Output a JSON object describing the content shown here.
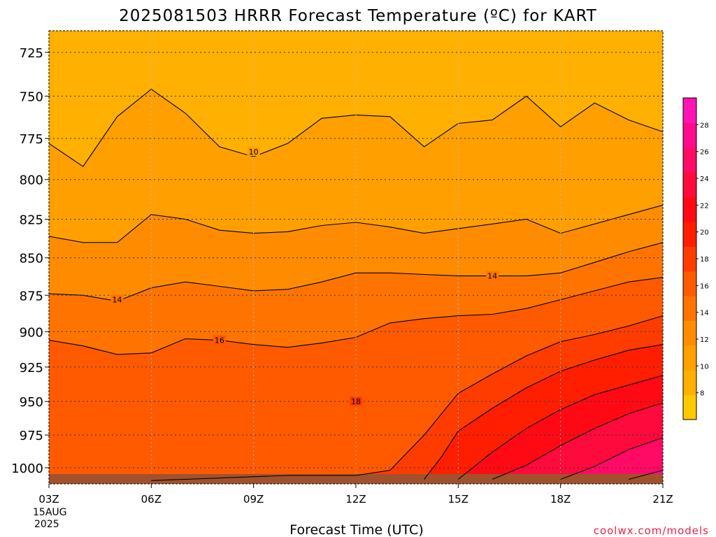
{
  "chart_data": {
    "type": "heatmap",
    "title": "2025081503 HRRR Forecast Temperature (ºC) for KART",
    "xlabel": "Forecast Time (UTC)",
    "ylabel": "",
    "x_ticks": [
      "03Z",
      "06Z",
      "09Z",
      "12Z",
      "15Z",
      "18Z",
      "21Z"
    ],
    "x_hours": [
      3,
      4,
      5,
      6,
      7,
      8,
      9,
      10,
      11,
      12,
      13,
      14,
      15,
      16,
      17,
      18,
      19,
      20,
      21
    ],
    "x_first_date": "15AUG",
    "x_first_year": "2025",
    "xlim": [
      3,
      21
    ],
    "y_ticks": [
      725,
      750,
      775,
      800,
      825,
      850,
      875,
      900,
      925,
      950,
      975,
      1000
    ],
    "ylim": [
      1006,
      713
    ],
    "y_scale": "log-pressure",
    "grid": true,
    "colorbar": {
      "ticks": [
        8,
        10,
        12,
        14,
        16,
        18,
        20,
        22,
        24,
        26,
        28
      ],
      "range": [
        6,
        30
      ],
      "colors": [
        "#ffc800",
        "#ffb000",
        "#ff9f00",
        "#ff8c00",
        "#ff7400",
        "#ff5a00",
        "#ff3c00",
        "#ff1e00",
        "#ff0a14",
        "#ff0a3c",
        "#ff0a64",
        "#ff0a8c",
        "#ff14b4"
      ],
      "placement": "right"
    },
    "contour_labels": [
      "10",
      "14",
      "14",
      "16",
      "18"
    ],
    "contours": [
      {
        "level": 10,
        "points": [
          [
            3,
            778
          ],
          [
            4,
            792
          ],
          [
            5,
            762
          ],
          [
            6,
            746
          ],
          [
            7,
            760
          ],
          [
            8,
            780
          ],
          [
            9,
            786
          ],
          [
            10,
            778
          ],
          [
            11,
            763
          ],
          [
            12,
            761
          ],
          [
            13,
            762
          ],
          [
            14,
            780
          ],
          [
            15,
            766
          ],
          [
            16,
            764
          ],
          [
            17,
            750
          ],
          [
            18,
            768
          ],
          [
            19,
            754
          ],
          [
            20,
            764
          ],
          [
            21,
            771
          ]
        ]
      },
      {
        "level": 12,
        "points": [
          [
            3,
            836
          ],
          [
            4,
            840
          ],
          [
            5,
            840
          ],
          [
            6,
            822
          ],
          [
            7,
            825
          ],
          [
            8,
            832
          ],
          [
            9,
            834
          ],
          [
            10,
            833
          ],
          [
            11,
            829
          ],
          [
            12,
            827
          ],
          [
            13,
            830
          ],
          [
            14,
            834
          ],
          [
            15,
            831
          ],
          [
            16,
            828
          ],
          [
            17,
            825
          ],
          [
            18,
            834
          ],
          [
            19,
            828
          ],
          [
            20,
            822
          ],
          [
            21,
            816
          ]
        ]
      },
      {
        "level": 14,
        "points": [
          [
            3,
            874
          ],
          [
            4,
            875
          ],
          [
            5,
            879
          ],
          [
            6,
            870
          ],
          [
            7,
            866
          ],
          [
            8,
            869
          ],
          [
            9,
            872
          ],
          [
            10,
            871
          ],
          [
            11,
            866
          ],
          [
            12,
            860
          ],
          [
            13,
            860
          ],
          [
            14,
            861
          ],
          [
            15,
            862
          ],
          [
            16,
            862
          ],
          [
            17,
            862
          ],
          [
            18,
            860
          ],
          [
            19,
            853
          ],
          [
            20,
            846
          ],
          [
            21,
            840
          ]
        ]
      },
      {
        "level": 16,
        "points": [
          [
            3,
            906
          ],
          [
            4,
            910
          ],
          [
            5,
            916
          ],
          [
            6,
            915
          ],
          [
            7,
            905
          ],
          [
            8,
            906
          ],
          [
            9,
            909
          ],
          [
            10,
            911
          ],
          [
            11,
            908
          ],
          [
            12,
            904
          ],
          [
            13,
            894
          ],
          [
            14,
            891
          ],
          [
            15,
            889
          ],
          [
            16,
            888
          ],
          [
            17,
            884
          ],
          [
            18,
            878
          ],
          [
            19,
            872
          ],
          [
            20,
            866
          ],
          [
            21,
            863
          ]
        ]
      },
      {
        "level": 18,
        "points": [
          [
            6,
            1010
          ],
          [
            9,
            1007
          ],
          [
            10,
            1006
          ],
          [
            12,
            1006
          ],
          [
            13,
            1002
          ],
          [
            14,
            975
          ],
          [
            15,
            944
          ],
          [
            16,
            930
          ],
          [
            17,
            917
          ],
          [
            18,
            907
          ],
          [
            19,
            902
          ],
          [
            20,
            896
          ],
          [
            21,
            889
          ]
        ]
      },
      {
        "level": 20,
        "points": [
          [
            14,
            1009
          ],
          [
            14.5,
            992
          ],
          [
            15,
            972
          ],
          [
            16,
            955
          ],
          [
            17,
            940
          ],
          [
            18,
            928
          ],
          [
            19,
            920
          ],
          [
            20,
            913
          ],
          [
            21,
            909
          ]
        ]
      },
      {
        "level": 22,
        "points": [
          [
            15,
            1009
          ],
          [
            16,
            988
          ],
          [
            17,
            970
          ],
          [
            18,
            956
          ],
          [
            19,
            945
          ],
          [
            20,
            938
          ],
          [
            21,
            931
          ]
        ]
      },
      {
        "level": 24,
        "points": [
          [
            16,
            1009
          ],
          [
            17,
            998
          ],
          [
            18,
            983
          ],
          [
            19,
            970
          ],
          [
            20,
            959
          ],
          [
            21,
            951
          ]
        ]
      },
      {
        "level": 26,
        "points": [
          [
            18,
            1009
          ],
          [
            19,
            999
          ],
          [
            20,
            986
          ],
          [
            21,
            977
          ]
        ]
      },
      {
        "level": 28,
        "points": [
          [
            20,
            1009
          ],
          [
            21,
            1002
          ]
        ]
      }
    ]
  },
  "credit": "coolwx.com/models"
}
